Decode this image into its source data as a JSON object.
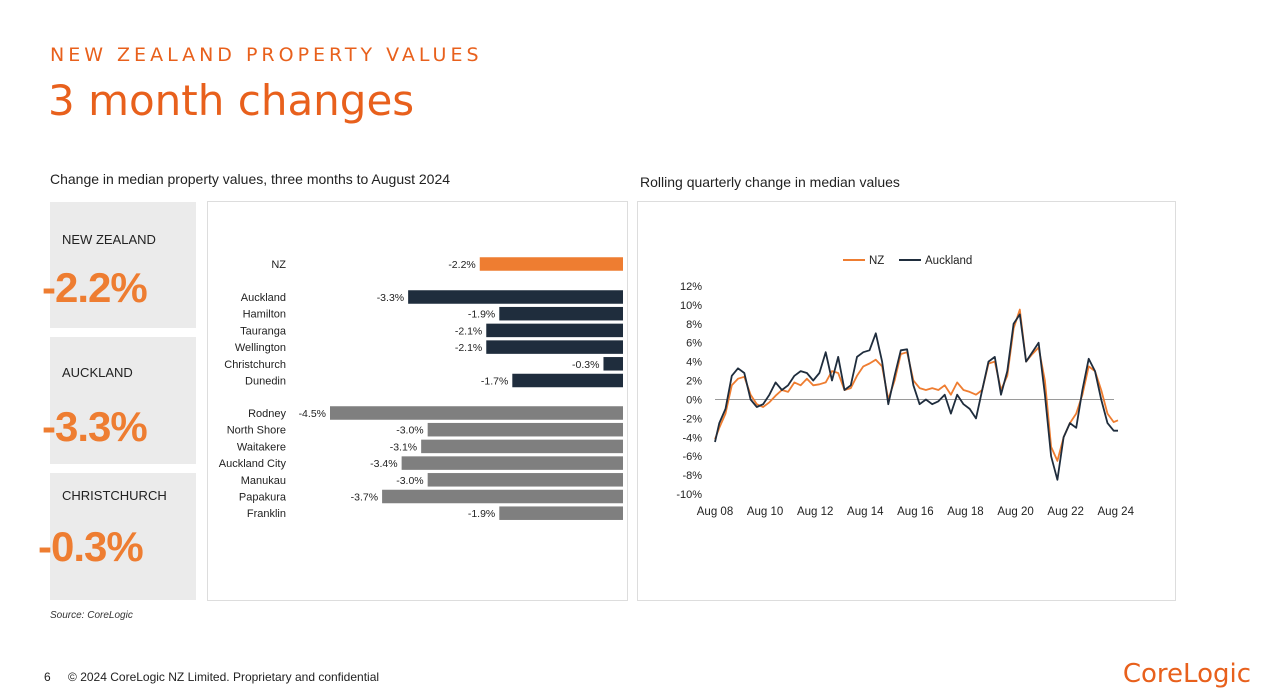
{
  "header": {
    "eyebrow": "NEW ZEALAND PROPERTY VALUES",
    "title": "3 month changes"
  },
  "kpis": [
    {
      "label": "NEW ZEALAND",
      "value": "-2.2%"
    },
    {
      "label": "AUCKLAND",
      "value": "-3.3%"
    },
    {
      "label": "CHRISTCHURCH",
      "value": "-0.3%"
    }
  ],
  "source": "Source: CoreLogic",
  "footer": {
    "page_number": "6",
    "copyright": "© 2024 CoreLogic NZ Limited. Proprietary and confidential"
  },
  "logo_text": "CoreLogic",
  "colors": {
    "orange": "#ee7d31",
    "navy": "#1f2d3d",
    "gray": "#7f7f7f",
    "brand": "#e8601c"
  },
  "chart_data": [
    {
      "type": "bar",
      "orientation": "horizontal",
      "title": "Change in median property values, three months to August 2024",
      "groups": [
        {
          "categories": [
            "NZ"
          ],
          "values": [
            -2.2
          ],
          "labels": [
            "-2.2%"
          ],
          "color": "#ee7d31"
        },
        {
          "categories": [
            "Auckland",
            "Hamilton",
            "Tauranga",
            "Wellington",
            "Christchurch",
            "Dunedin"
          ],
          "values": [
            -3.3,
            -1.9,
            -2.1,
            -2.1,
            -0.3,
            -1.7
          ],
          "labels": [
            "-3.3%",
            "-1.9%",
            "-2.1%",
            "-2.1%",
            "-0.3%",
            "-1.7%"
          ],
          "color": "#1f2d3d"
        },
        {
          "categories": [
            "Rodney",
            "North Shore",
            "Waitakere",
            "Auckland City",
            "Manukau",
            "Papakura",
            "Franklin"
          ],
          "values": [
            -4.5,
            -3.0,
            -3.1,
            -3.4,
            -3.0,
            -3.7,
            -1.9
          ],
          "labels": [
            "-4.5%",
            "-3.0%",
            "-3.1%",
            "-3.4%",
            "-3.0%",
            "-3.7%",
            "-1.9%"
          ],
          "color": "#7f7f7f"
        }
      ],
      "xlim": [
        -4.5,
        0
      ]
    },
    {
      "type": "line",
      "title": "Rolling quarterly change in median values",
      "ylim": [
        -10,
        12
      ],
      "yticks": [
        12,
        10,
        8,
        6,
        4,
        2,
        0,
        -2,
        -4,
        -6,
        -8,
        -10
      ],
      "ytick_labels": [
        "12%",
        "10%",
        "8%",
        "6%",
        "4%",
        "2%",
        "0%",
        "-2%",
        "-4%",
        "-6%",
        "-8%",
        "-10%"
      ],
      "xlim": [
        2008.58,
        2024.67
      ],
      "xticks": [
        2008.58,
        2010.58,
        2012.58,
        2014.58,
        2016.58,
        2018.58,
        2020.58,
        2022.58,
        2024.58
      ],
      "xtick_labels": [
        "Aug 08",
        "Aug 10",
        "Aug 12",
        "Aug 14",
        "Aug 16",
        "Aug 18",
        "Aug 20",
        "Aug 22",
        "Aug 24"
      ],
      "legend": "top-center",
      "grid": false,
      "series": [
        {
          "name": "NZ",
          "color": "#ee7d31",
          "x": [
            2008.58,
            2008.75,
            2009.0,
            2009.25,
            2009.5,
            2009.75,
            2010.0,
            2010.25,
            2010.5,
            2010.75,
            2011.0,
            2011.25,
            2011.5,
            2011.75,
            2012.0,
            2012.25,
            2012.5,
            2012.75,
            2013.0,
            2013.25,
            2013.5,
            2013.75,
            2014.0,
            2014.25,
            2014.5,
            2014.75,
            2015.0,
            2015.25,
            2015.5,
            2015.75,
            2016.0,
            2016.25,
            2016.5,
            2016.75,
            2017.0,
            2017.25,
            2017.5,
            2017.75,
            2018.0,
            2018.25,
            2018.5,
            2018.75,
            2019.0,
            2019.25,
            2019.5,
            2019.75,
            2020.0,
            2020.25,
            2020.5,
            2020.75,
            2021.0,
            2021.25,
            2021.5,
            2021.75,
            2022.0,
            2022.25,
            2022.5,
            2022.75,
            2023.0,
            2023.25,
            2023.5,
            2023.75,
            2024.0,
            2024.25,
            2024.5,
            2024.67
          ],
          "y": [
            -4.2,
            -3.0,
            -1.5,
            1.5,
            2.2,
            2.4,
            0.5,
            -0.5,
            -0.8,
            -0.3,
            0.4,
            1.0,
            0.8,
            1.8,
            1.5,
            2.2,
            1.5,
            1.6,
            1.8,
            3.0,
            2.8,
            1.0,
            1.2,
            2.5,
            3.5,
            3.8,
            4.2,
            3.5,
            0.0,
            2.0,
            4.8,
            5.0,
            2.0,
            1.2,
            1.0,
            1.2,
            1.0,
            1.5,
            0.5,
            1.8,
            1.0,
            0.8,
            0.5,
            1.0,
            3.8,
            4.0,
            1.0,
            2.5,
            7.5,
            9.5,
            4.0,
            4.8,
            5.5,
            2.0,
            -5.0,
            -6.5,
            -4.0,
            -2.5,
            -1.5,
            0.5,
            3.5,
            3.0,
            1.0,
            -1.5,
            -2.4,
            -2.2
          ]
        },
        {
          "name": "Auckland",
          "color": "#1f2d3d",
          "x": [
            2008.58,
            2008.75,
            2009.0,
            2009.25,
            2009.5,
            2009.75,
            2010.0,
            2010.25,
            2010.5,
            2010.75,
            2011.0,
            2011.25,
            2011.5,
            2011.75,
            2012.0,
            2012.25,
            2012.5,
            2012.75,
            2013.0,
            2013.25,
            2013.5,
            2013.75,
            2014.0,
            2014.25,
            2014.5,
            2014.75,
            2015.0,
            2015.25,
            2015.5,
            2015.75,
            2016.0,
            2016.25,
            2016.5,
            2016.75,
            2017.0,
            2017.25,
            2017.5,
            2017.75,
            2018.0,
            2018.25,
            2018.5,
            2018.75,
            2019.0,
            2019.25,
            2019.5,
            2019.75,
            2020.0,
            2020.25,
            2020.5,
            2020.75,
            2021.0,
            2021.25,
            2021.5,
            2021.75,
            2022.0,
            2022.25,
            2022.5,
            2022.75,
            2023.0,
            2023.25,
            2023.5,
            2023.75,
            2024.0,
            2024.25,
            2024.5,
            2024.67
          ],
          "y": [
            -4.5,
            -2.5,
            -1.0,
            2.5,
            3.3,
            2.8,
            0.0,
            -0.8,
            -0.5,
            0.5,
            1.8,
            1.0,
            1.5,
            2.5,
            3.0,
            2.8,
            2.0,
            2.8,
            5.0,
            2.0,
            4.5,
            1.0,
            1.5,
            4.5,
            5.0,
            5.2,
            7.0,
            4.0,
            -0.5,
            2.5,
            5.2,
            5.3,
            1.5,
            -0.5,
            0.0,
            -0.5,
            -0.2,
            0.5,
            -1.5,
            0.5,
            -0.5,
            -1.0,
            -2.0,
            1.0,
            4.0,
            4.5,
            0.5,
            3.0,
            8.0,
            9.0,
            4.0,
            5.0,
            6.0,
            0.5,
            -6.0,
            -8.5,
            -4.0,
            -2.5,
            -3.0,
            1.0,
            4.3,
            3.0,
            0.0,
            -2.5,
            -3.3,
            -3.3
          ]
        }
      ]
    }
  ]
}
